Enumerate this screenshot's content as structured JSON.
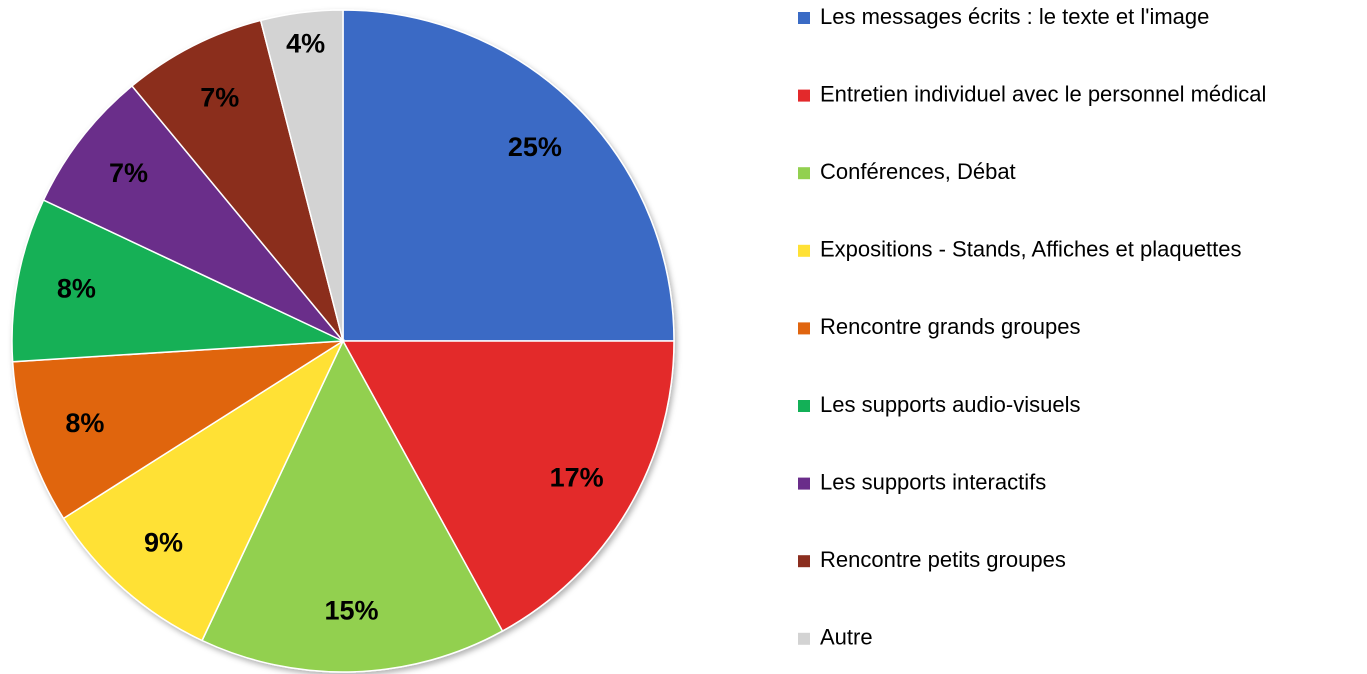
{
  "chart_data": {
    "type": "pie",
    "categories": [
      "Les messages écrits : le texte et l'image",
      "Entretien individuel avec le personnel médical",
      "Conférences, Débat",
      "Expositions - Stands, Affiches et plaquettes",
      "Rencontre grands groupes",
      "Les supports audio-visuels",
      "Les supports interactifs",
      "Rencontre petits groupes",
      "Autre"
    ],
    "values": [
      25,
      17,
      15,
      9,
      8,
      8,
      7,
      7,
      4
    ],
    "value_labels": [
      "25%",
      "17%",
      "15%",
      "9%",
      "8%",
      "8%",
      "7%",
      "7%",
      "4%"
    ],
    "colors": [
      "#3a6bc5",
      "#e3292b",
      "#92d050",
      "#ffe135",
      "#e0650f",
      "#13b057",
      "#6a2d8a",
      "#8b2e1f",
      "#d3d3d3"
    ],
    "legend": "right"
  }
}
